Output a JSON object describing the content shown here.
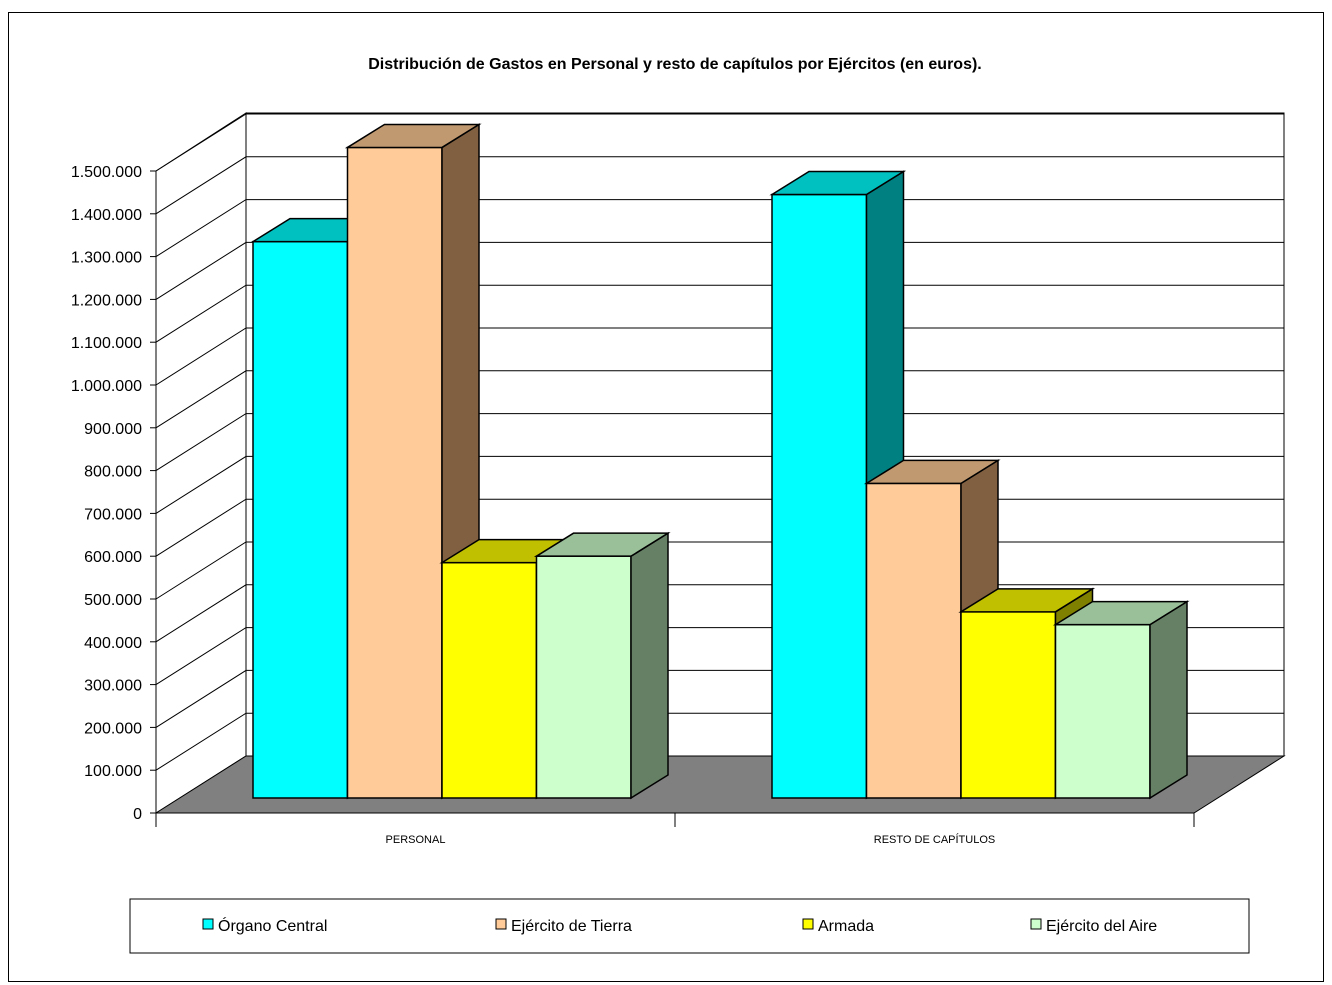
{
  "chart_data": {
    "type": "bar",
    "title": "Distribución de Gastos en Personal y resto de capítulos por Ejércitos (en euros).",
    "xlabel": "",
    "ylabel": "",
    "categories": [
      "PERSONAL",
      "RESTO DE CAPÍTULOS"
    ],
    "series": [
      {
        "name": "Órgano Central",
        "values": [
          1300000,
          1410000
        ],
        "color": "#00FFFF",
        "side_color": "#008080",
        "top_color": "#00C0C0"
      },
      {
        "name": "Ejército de Tierra",
        "values": [
          1520000,
          735000
        ],
        "color": "#FFCC99",
        "side_color": "#806040",
        "top_color": "#C09970"
      },
      {
        "name": "Armada",
        "values": [
          550000,
          435000
        ],
        "color": "#FFFF00",
        "side_color": "#808000",
        "top_color": "#C0C000"
      },
      {
        "name": "Ejército del Aire",
        "values": [
          565000,
          405000
        ],
        "color": "#CCFFCC",
        "side_color": "#668066",
        "top_color": "#99C099"
      }
    ],
    "ylim": [
      0,
      1500000
    ],
    "ytick_step": 100000,
    "ytick_labels": [
      "0",
      "100.000",
      "200.000",
      "300.000",
      "400.000",
      "500.000",
      "600.000",
      "700.000",
      "800.000",
      "900.000",
      "1.000.000",
      "1.100.000",
      "1.200.000",
      "1.300.000",
      "1.400.000",
      "1.500.000"
    ],
    "grid": true,
    "legend_position": "bottom",
    "style": "3d-clustered-column",
    "wall_color": "#FFFFFF",
    "floor_color": "#808080"
  }
}
